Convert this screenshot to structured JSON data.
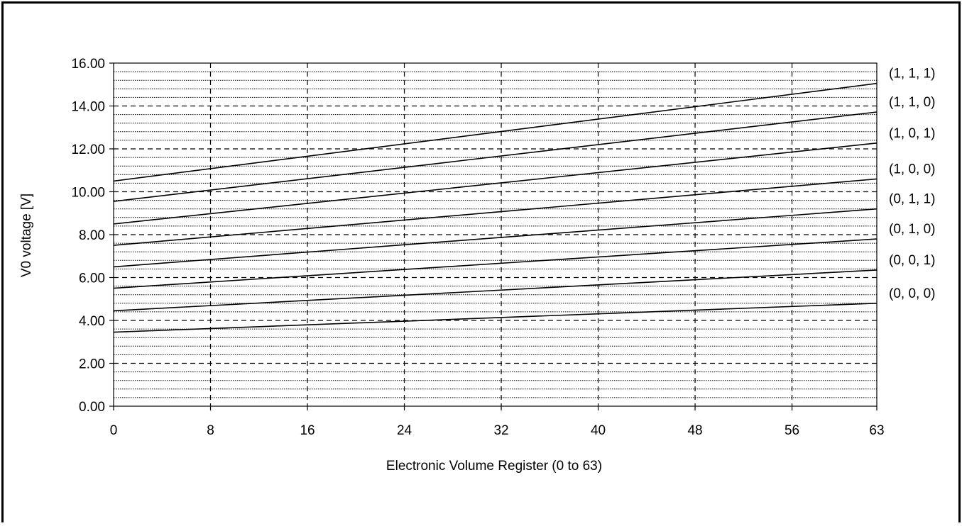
{
  "chart_data": {
    "type": "line",
    "title": "",
    "xlabel": "Electronic Volume Register (0 to 63)",
    "ylabel": "V0 voltage [V]",
    "xlim": [
      0,
      63
    ],
    "ylim": [
      0,
      16
    ],
    "x_ticks": [
      0,
      8,
      16,
      24,
      32,
      40,
      48,
      56,
      63
    ],
    "x_tick_labels": [
      "0",
      "8",
      "16",
      "24",
      "32",
      "40",
      "48",
      "56",
      "63"
    ],
    "y_ticks": [
      0,
      2,
      4,
      6,
      8,
      10,
      12,
      14,
      16
    ],
    "y_tick_labels": [
      "0.00",
      "2.00",
      "4.00",
      "6.00",
      "8.00",
      "10.00",
      "12.00",
      "14.00",
      "16.00"
    ],
    "y_minor_step": 0.4,
    "grid": "major dashed, minor dotted horizontal",
    "legend": "series labels at right end of lines",
    "line_color": "#000000",
    "series": [
      {
        "name": "(1, 1, 1)",
        "x": [
          0,
          63
        ],
        "values": [
          10.5,
          15.05
        ]
      },
      {
        "name": "(1, 1, 0)",
        "x": [
          0,
          63
        ],
        "values": [
          9.55,
          13.72
        ]
      },
      {
        "name": "(1, 0, 1)",
        "x": [
          0,
          63
        ],
        "values": [
          8.5,
          12.27
        ]
      },
      {
        "name": "(1, 0, 0)",
        "x": [
          0,
          63
        ],
        "values": [
          7.5,
          10.6
        ]
      },
      {
        "name": "(0, 1, 1)",
        "x": [
          0,
          63
        ],
        "values": [
          6.5,
          9.2
        ]
      },
      {
        "name": "(0, 1, 0)",
        "x": [
          0,
          63
        ],
        "values": [
          5.5,
          7.8
        ]
      },
      {
        "name": "(0, 0, 1)",
        "x": [
          0,
          63
        ],
        "values": [
          4.45,
          6.35
        ]
      },
      {
        "name": "(0, 0, 0)",
        "x": [
          0,
          63
        ],
        "values": [
          3.45,
          4.8
        ]
      }
    ]
  }
}
